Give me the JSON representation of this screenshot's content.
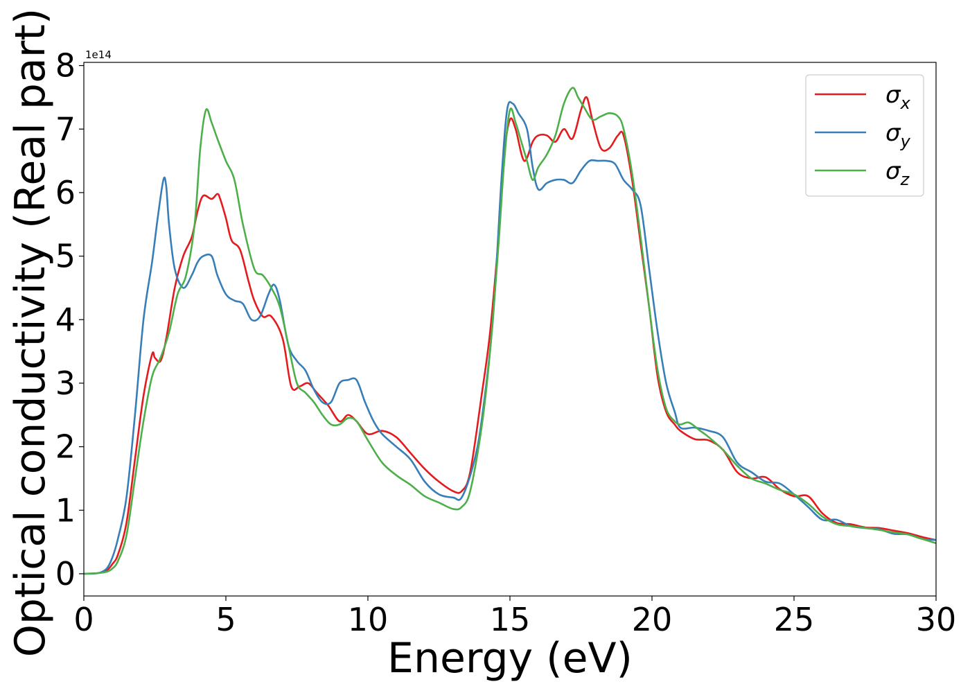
{
  "chart_data": {
    "type": "line",
    "title": "",
    "xlabel": "Energy (eV)",
    "ylabel": "Optical conductivity (Real part)",
    "y_offset_label": "1e14",
    "xlim": [
      0,
      30
    ],
    "ylim": [
      -0.35,
      8.05
    ],
    "y_scale": 100000000000000.0,
    "x_ticks": [
      0,
      5,
      10,
      15,
      20,
      25,
      30
    ],
    "x_tick_labels": [
      "0",
      "5",
      "10",
      "15",
      "20",
      "25",
      "30"
    ],
    "y_ticks": [
      0,
      1,
      2,
      3,
      4,
      5,
      6,
      7,
      8
    ],
    "y_tick_labels": [
      "0",
      "1",
      "2",
      "3",
      "4",
      "5",
      "6",
      "7",
      "8"
    ],
    "grid": false,
    "legend_position": "top-right",
    "colors": {
      "sigma_x": "#e41a1c",
      "sigma_y": "#377eb8",
      "sigma_z": "#4daf4a"
    },
    "series": [
      {
        "name": "σx",
        "symbol": "σ",
        "subscript": "x",
        "color": "#e41a1c",
        "x": [
          0,
          0.5,
          0.8,
          1.0,
          1.2,
          1.5,
          1.8,
          2.1,
          2.4,
          2.5,
          2.7,
          2.9,
          3.2,
          3.5,
          3.8,
          4.0,
          4.2,
          4.5,
          4.7,
          4.8,
          5.0,
          5.2,
          5.5,
          5.8,
          6.0,
          6.3,
          6.6,
          7.0,
          7.3,
          7.6,
          7.9,
          8.2,
          8.6,
          9.0,
          9.3,
          9.6,
          10.0,
          10.5,
          11.0,
          11.5,
          12.0,
          12.5,
          13.0,
          13.3,
          13.6,
          14.0,
          14.3,
          14.6,
          14.8,
          15.0,
          15.2,
          15.5,
          15.8,
          16.0,
          16.3,
          16.6,
          16.9,
          17.2,
          17.5,
          17.7,
          17.9,
          18.2,
          18.5,
          18.8,
          19.0,
          19.3,
          19.6,
          19.9,
          20.2,
          20.5,
          20.8,
          21.0,
          21.5,
          22.0,
          22.5,
          23.0,
          23.5,
          24.0,
          24.5,
          25.0,
          25.5,
          26.0,
          26.5,
          27.0,
          27.5,
          28.0,
          28.5,
          29.0,
          29.5,
          30.0
        ],
        "values": [
          0.0,
          0.01,
          0.05,
          0.15,
          0.3,
          0.8,
          1.8,
          2.8,
          3.45,
          3.4,
          3.35,
          3.7,
          4.5,
          5.0,
          5.3,
          5.7,
          5.95,
          5.9,
          5.98,
          5.9,
          5.6,
          5.25,
          5.1,
          4.6,
          4.3,
          4.05,
          4.05,
          3.7,
          2.95,
          2.95,
          3.0,
          2.85,
          2.65,
          2.4,
          2.5,
          2.4,
          2.2,
          2.25,
          2.15,
          1.9,
          1.65,
          1.45,
          1.3,
          1.3,
          1.6,
          2.8,
          3.8,
          5.3,
          6.6,
          7.15,
          7.0,
          6.5,
          6.8,
          6.9,
          6.9,
          6.8,
          7.0,
          6.85,
          7.3,
          7.5,
          7.15,
          6.7,
          6.7,
          6.9,
          6.9,
          6.2,
          5.2,
          4.2,
          3.1,
          2.55,
          2.35,
          2.25,
          2.12,
          2.1,
          1.95,
          1.6,
          1.5,
          1.52,
          1.33,
          1.22,
          1.22,
          0.95,
          0.8,
          0.78,
          0.73,
          0.72,
          0.68,
          0.64,
          0.58,
          0.53
        ]
      },
      {
        "name": "σy",
        "symbol": "σ",
        "subscript": "y",
        "color": "#377eb8",
        "x": [
          0,
          0.5,
          0.8,
          1.0,
          1.2,
          1.5,
          1.8,
          2.1,
          2.4,
          2.6,
          2.8,
          2.9,
          3.0,
          3.2,
          3.5,
          3.8,
          4.0,
          4.2,
          4.5,
          4.7,
          5.0,
          5.3,
          5.6,
          5.9,
          6.2,
          6.5,
          6.7,
          6.9,
          7.2,
          7.5,
          7.8,
          8.1,
          8.4,
          8.7,
          9.0,
          9.3,
          9.6,
          9.9,
          10.2,
          10.5,
          11.0,
          11.5,
          12.0,
          12.5,
          13.0,
          13.3,
          13.7,
          14.0,
          14.4,
          14.7,
          14.9,
          15.1,
          15.3,
          15.6,
          15.8,
          16.0,
          16.3,
          16.6,
          16.9,
          17.2,
          17.5,
          17.8,
          18.1,
          18.4,
          18.7,
          19.0,
          19.3,
          19.6,
          19.9,
          20.2,
          20.5,
          20.8,
          21.0,
          21.5,
          22.0,
          22.5,
          23.0,
          23.5,
          24.0,
          24.5,
          25.0,
          25.5,
          26.0,
          26.5,
          27.0,
          27.5,
          28.0,
          28.5,
          29.0,
          29.5,
          30.0
        ],
        "values": [
          0.0,
          0.01,
          0.08,
          0.25,
          0.55,
          1.2,
          2.5,
          4.0,
          4.9,
          5.6,
          6.2,
          6.1,
          5.5,
          4.8,
          4.5,
          4.7,
          4.9,
          5.0,
          5.0,
          4.7,
          4.4,
          4.3,
          4.25,
          4.0,
          4.05,
          4.4,
          4.55,
          4.3,
          3.6,
          3.35,
          3.2,
          2.9,
          2.7,
          2.7,
          3.0,
          3.05,
          3.05,
          2.7,
          2.4,
          2.2,
          2.0,
          1.8,
          1.45,
          1.25,
          1.2,
          1.2,
          1.7,
          2.4,
          4.0,
          6.2,
          7.3,
          7.4,
          7.25,
          7.0,
          6.4,
          6.05,
          6.15,
          6.2,
          6.2,
          6.15,
          6.35,
          6.5,
          6.5,
          6.5,
          6.45,
          6.2,
          6.05,
          5.8,
          4.8,
          3.8,
          3.0,
          2.55,
          2.3,
          2.3,
          2.25,
          2.15,
          1.75,
          1.6,
          1.45,
          1.42,
          1.25,
          1.05,
          0.85,
          0.85,
          0.75,
          0.72,
          0.7,
          0.63,
          0.62,
          0.55,
          0.53
        ]
      },
      {
        "name": "σz",
        "symbol": "σ",
        "subscript": "z",
        "color": "#4daf4a",
        "x": [
          0,
          0.5,
          0.8,
          1.0,
          1.2,
          1.5,
          1.8,
          2.1,
          2.4,
          2.7,
          3.0,
          3.3,
          3.6,
          3.9,
          4.1,
          4.3,
          4.5,
          4.7,
          5.0,
          5.3,
          5.6,
          6.0,
          6.3,
          6.6,
          6.9,
          7.2,
          7.5,
          7.8,
          8.1,
          8.4,
          8.7,
          9.0,
          9.3,
          9.6,
          10.0,
          10.5,
          11.0,
          11.5,
          12.0,
          12.5,
          13.0,
          13.3,
          13.6,
          14.0,
          14.3,
          14.6,
          14.8,
          15.0,
          15.2,
          15.4,
          15.6,
          15.8,
          16.0,
          16.3,
          16.6,
          16.9,
          17.2,
          17.4,
          17.6,
          17.9,
          18.2,
          18.5,
          18.8,
          19.0,
          19.3,
          19.6,
          19.9,
          20.2,
          20.5,
          20.8,
          21.0,
          21.3,
          21.7,
          22.0,
          22.5,
          23.0,
          23.5,
          24.0,
          24.5,
          25.0,
          25.5,
          26.0,
          26.5,
          27.0,
          27.5,
          28.0,
          28.5,
          29.0,
          29.5,
          30.0
        ],
        "values": [
          0.0,
          0.01,
          0.03,
          0.08,
          0.2,
          0.6,
          1.5,
          2.4,
          3.1,
          3.4,
          3.8,
          4.4,
          4.7,
          5.5,
          6.7,
          7.3,
          7.1,
          6.85,
          6.5,
          6.2,
          5.5,
          4.8,
          4.7,
          4.5,
          4.2,
          3.6,
          3.0,
          2.85,
          2.7,
          2.5,
          2.35,
          2.35,
          2.45,
          2.4,
          2.1,
          1.75,
          1.55,
          1.4,
          1.22,
          1.12,
          1.02,
          1.05,
          1.3,
          2.3,
          3.5,
          5.2,
          6.5,
          7.3,
          7.1,
          6.8,
          6.5,
          6.2,
          6.4,
          6.6,
          6.9,
          7.4,
          7.65,
          7.5,
          7.35,
          7.15,
          7.2,
          7.25,
          7.2,
          7.0,
          6.3,
          5.3,
          4.2,
          3.2,
          2.6,
          2.4,
          2.35,
          2.38,
          2.25,
          2.15,
          1.95,
          1.7,
          1.5,
          1.42,
          1.32,
          1.25,
          1.1,
          0.9,
          0.78,
          0.75,
          0.72,
          0.69,
          0.65,
          0.62,
          0.55,
          0.48
        ]
      }
    ]
  }
}
